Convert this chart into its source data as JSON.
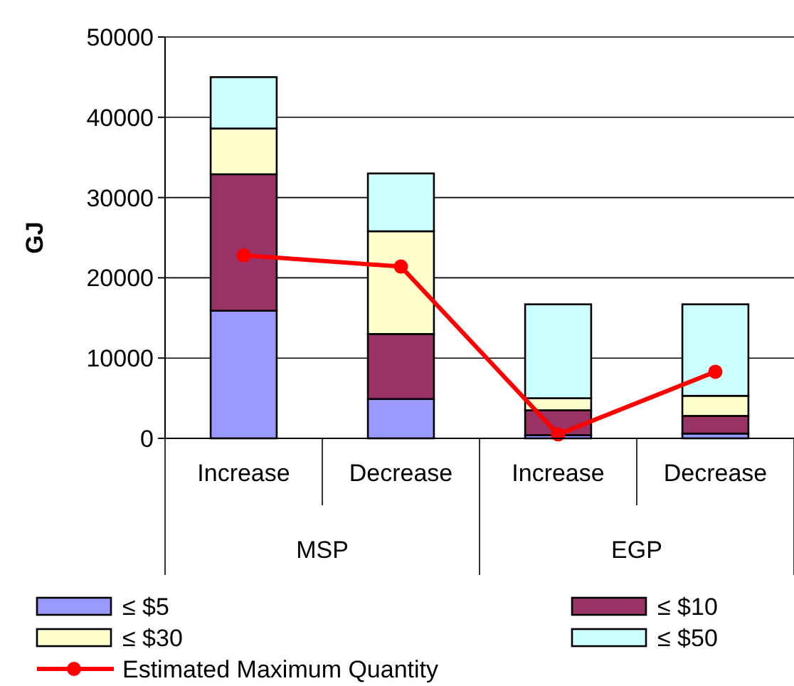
{
  "chart_data": {
    "type": "bar",
    "stacked": true,
    "ylabel": "GJ",
    "categories": [
      "Increase",
      "Decrease",
      "Increase",
      "Decrease"
    ],
    "annotations": [
      "MSP",
      "EGP"
    ],
    "series": [
      {
        "name": "≤ $5",
        "color": "#9999ff",
        "values": [
          15900,
          4900,
          400,
          600
        ]
      },
      {
        "name": "≤ $10",
        "color": "#993366",
        "values": [
          17000,
          8100,
          3100,
          2200
        ]
      },
      {
        "name": "≤ $30",
        "color": "#ffffcc",
        "values": [
          5700,
          12800,
          1500,
          2500
        ]
      },
      {
        "name": "≤ $50",
        "color": "#ccffff",
        "values": [
          6400,
          7200,
          11700,
          11400
        ]
      },
      {
        "name": "Estimated Maximum Quantity",
        "type": "line",
        "color": "#ff0000",
        "marker": "circle",
        "values": [
          22800,
          21400,
          500,
          8300
        ]
      }
    ],
    "ylim": [
      0,
      50000
    ],
    "yticks": [
      0,
      10000,
      20000,
      30000,
      40000,
      50000
    ],
    "grid": "y",
    "legend": "bottom"
  }
}
